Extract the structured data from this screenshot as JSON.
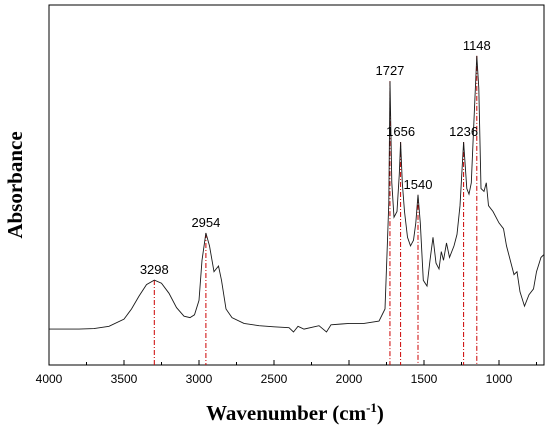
{
  "chart_data": {
    "type": "line",
    "xlabel": "Wavenumber (cm",
    "xlabel_sup": "-1",
    "xlabel_close": ")",
    "ylabel": "Absorbance",
    "xlim": [
      4000,
      700
    ],
    "x_reversed": true,
    "ylim": [
      0,
      1
    ],
    "x_ticks": [
      4000,
      3500,
      3000,
      2500,
      2000,
      1500,
      1000
    ],
    "x_tick_labels": [
      "4000",
      "3500",
      "3000",
      "2500",
      "2000",
      "1500",
      "1000"
    ],
    "y_ticks_shown": false,
    "grid": false,
    "line_color": "#1a1a1a",
    "peak_line_color": "#cc0000",
    "peaks": [
      {
        "x": 3298,
        "label": "3298",
        "y": 0.181
      },
      {
        "x": 2954,
        "label": "2954",
        "y": 0.345
      },
      {
        "x": 1727,
        "label": "1727",
        "y": 0.874
      },
      {
        "x": 1656,
        "label": "1656",
        "y": 0.662
      },
      {
        "x": 1540,
        "label": "1540",
        "y": 0.478
      },
      {
        "x": 1236,
        "label": "1236",
        "y": 0.662
      },
      {
        "x": 1148,
        "label": "1148",
        "y": 0.962
      }
    ],
    "series": [
      {
        "values": [
          [
            4000,
            0.01
          ],
          [
            3800,
            0.01
          ],
          [
            3700,
            0.012
          ],
          [
            3600,
            0.02
          ],
          [
            3500,
            0.045
          ],
          [
            3450,
            0.08
          ],
          [
            3400,
            0.125
          ],
          [
            3350,
            0.165
          ],
          [
            3298,
            0.181
          ],
          [
            3250,
            0.17
          ],
          [
            3200,
            0.135
          ],
          [
            3150,
            0.085
          ],
          [
            3100,
            0.055
          ],
          [
            3060,
            0.05
          ],
          [
            3030,
            0.06
          ],
          [
            3000,
            0.11
          ],
          [
            2980,
            0.25
          ],
          [
            2954,
            0.345
          ],
          [
            2930,
            0.3
          ],
          [
            2900,
            0.21
          ],
          [
            2870,
            0.23
          ],
          [
            2850,
            0.18
          ],
          [
            2820,
            0.08
          ],
          [
            2780,
            0.05
          ],
          [
            2700,
            0.03
          ],
          [
            2600,
            0.022
          ],
          [
            2500,
            0.018
          ],
          [
            2400,
            0.015
          ],
          [
            2370,
            0.0
          ],
          [
            2340,
            0.02
          ],
          [
            2300,
            0.01
          ],
          [
            2200,
            0.022
          ],
          [
            2150,
            0.0
          ],
          [
            2120,
            0.025
          ],
          [
            2050,
            0.028
          ],
          [
            2000,
            0.03
          ],
          [
            1900,
            0.03
          ],
          [
            1800,
            0.038
          ],
          [
            1760,
            0.08
          ],
          [
            1745,
            0.3
          ],
          [
            1735,
            0.45
          ],
          [
            1727,
            0.874
          ],
          [
            1715,
            0.52
          ],
          [
            1700,
            0.4
          ],
          [
            1680,
            0.42
          ],
          [
            1665,
            0.55
          ],
          [
            1656,
            0.662
          ],
          [
            1645,
            0.52
          ],
          [
            1630,
            0.42
          ],
          [
            1610,
            0.33
          ],
          [
            1590,
            0.3
          ],
          [
            1570,
            0.32
          ],
          [
            1555,
            0.38
          ],
          [
            1540,
            0.478
          ],
          [
            1525,
            0.38
          ],
          [
            1505,
            0.18
          ],
          [
            1480,
            0.16
          ],
          [
            1460,
            0.25
          ],
          [
            1440,
            0.33
          ],
          [
            1420,
            0.24
          ],
          [
            1400,
            0.22
          ],
          [
            1385,
            0.28
          ],
          [
            1370,
            0.25
          ],
          [
            1350,
            0.31
          ],
          [
            1330,
            0.26
          ],
          [
            1300,
            0.3
          ],
          [
            1280,
            0.34
          ],
          [
            1260,
            0.44
          ],
          [
            1236,
            0.662
          ],
          [
            1215,
            0.5
          ],
          [
            1200,
            0.48
          ],
          [
            1185,
            0.52
          ],
          [
            1170,
            0.7
          ],
          [
            1160,
            0.82
          ],
          [
            1148,
            0.962
          ],
          [
            1135,
            0.85
          ],
          [
            1120,
            0.5
          ],
          [
            1100,
            0.49
          ],
          [
            1085,
            0.52
          ],
          [
            1070,
            0.44
          ],
          [
            1040,
            0.42
          ],
          [
            1000,
            0.38
          ],
          [
            970,
            0.36
          ],
          [
            950,
            0.3
          ],
          [
            920,
            0.24
          ],
          [
            900,
            0.2
          ],
          [
            880,
            0.21
          ],
          [
            860,
            0.14
          ],
          [
            830,
            0.09
          ],
          [
            800,
            0.13
          ],
          [
            770,
            0.15
          ],
          [
            750,
            0.21
          ],
          [
            720,
            0.26
          ],
          [
            700,
            0.27
          ]
        ]
      }
    ]
  }
}
